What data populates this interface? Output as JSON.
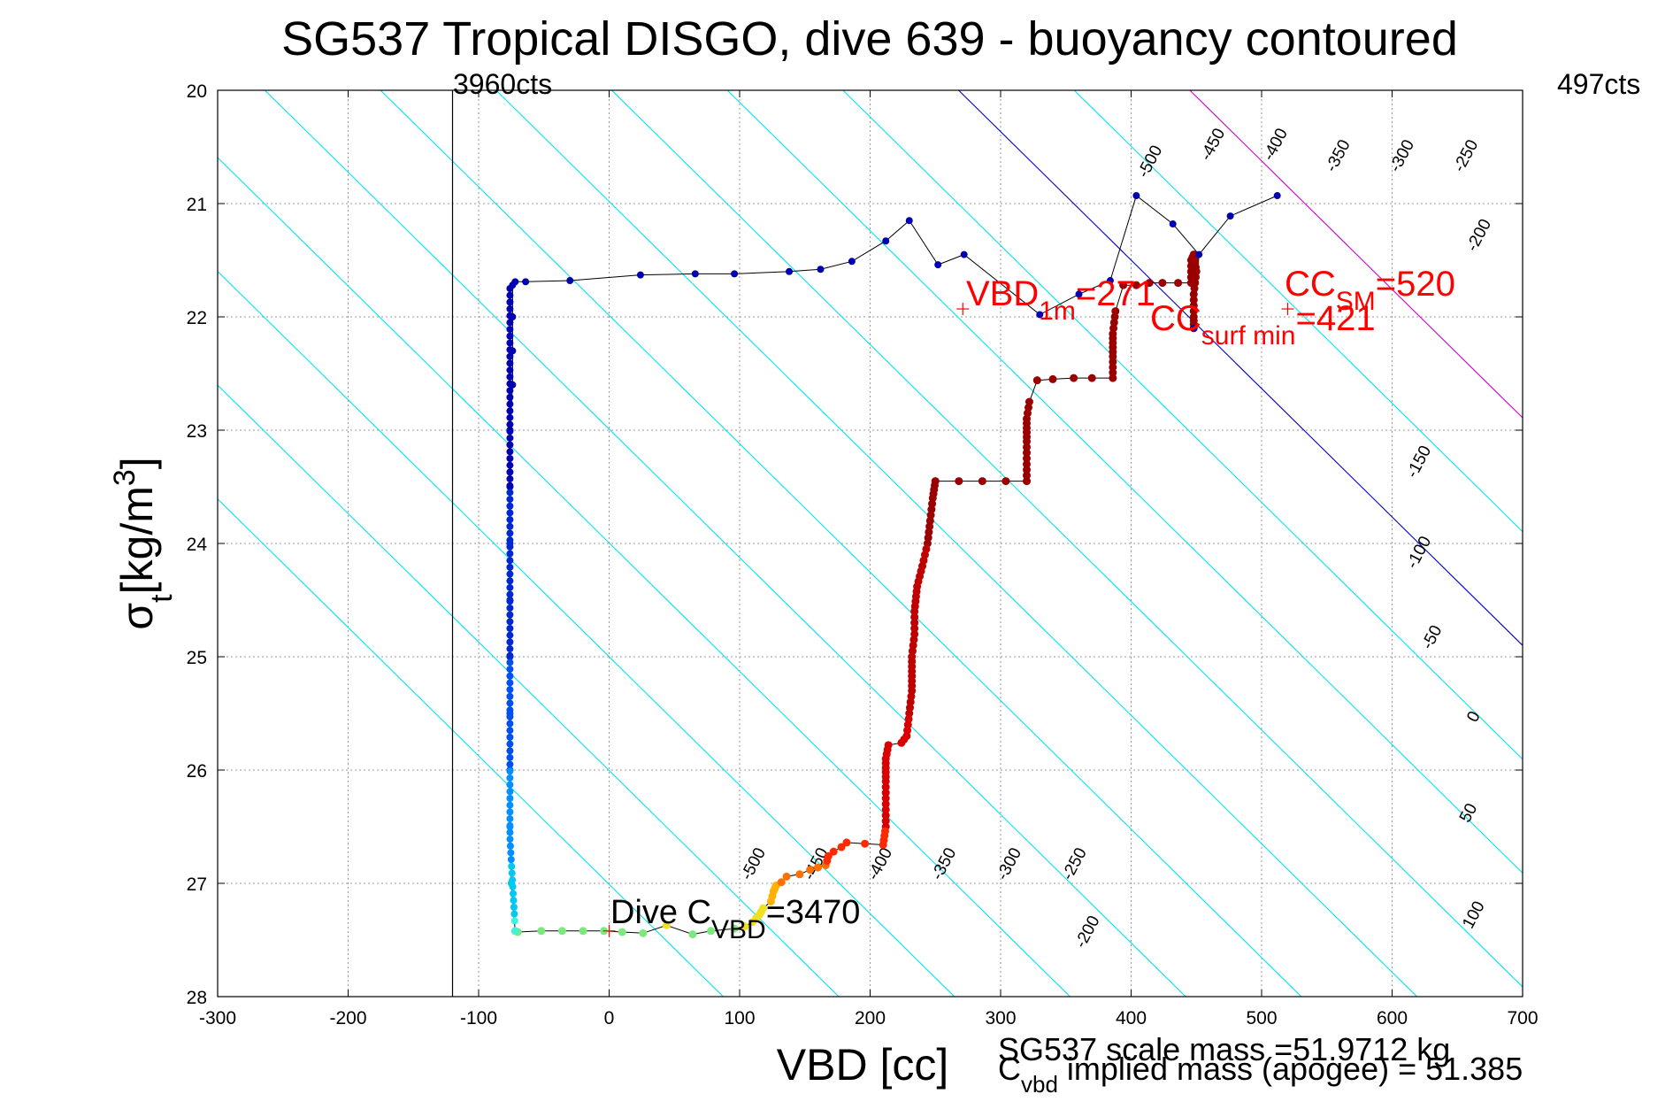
{
  "chart_data": {
    "type": "scatter",
    "title": "SG537 Tropical DISGO, dive 639 - buoyancy contoured",
    "xlabel": "VBD [cc]",
    "ylabel_main": "σ",
    "ylabel_sub": "t",
    "ylabel_unit": "[kg/m",
    "ylabel_sup": "3",
    "ylabel_close": "]",
    "xlim": [
      -300,
      700
    ],
    "ylim": [
      20,
      28
    ],
    "y_reversed": true,
    "grid": true,
    "x_ticks": [
      "-300",
      "-200",
      "-100",
      "0",
      "100",
      "200",
      "300",
      "400",
      "500",
      "600",
      "700"
    ],
    "y_ticks": [
      "20",
      "21",
      "22",
      "23",
      "24",
      "25",
      "26",
      "27",
      "28"
    ],
    "vertical_line": {
      "x": -120,
      "label": "3960cts"
    },
    "right_label": "497cts",
    "contours": [
      {
        "level": -500,
        "color": "#00e5ee",
        "label": "-500"
      },
      {
        "level": -450,
        "color": "#00e5ee",
        "label": "-450"
      },
      {
        "level": -400,
        "color": "#00e5ee",
        "label": "-400"
      },
      {
        "level": -350,
        "color": "#00e5ee",
        "label": "-350"
      },
      {
        "level": -300,
        "color": "#00e5ee",
        "label": "-300"
      },
      {
        "level": -250,
        "color": "#00e5ee",
        "label": "-250"
      },
      {
        "level": -200,
        "color": "#00e5ee",
        "label": "-200"
      },
      {
        "level": -150,
        "color": "#00e5ee",
        "label": "-150"
      },
      {
        "level": -100,
        "color": "#00e5ee",
        "label": "-100"
      },
      {
        "level": -50,
        "color": "#00e5ee",
        "label": "-50"
      },
      {
        "level": 0,
        "color": "#0000cc",
        "label": "0"
      },
      {
        "level": 50,
        "color": "#00e5ee",
        "label": "50"
      },
      {
        "level": 100,
        "color": "#cc00cc",
        "label": "100"
      }
    ],
    "dive_series": {
      "name": "dive",
      "points": [
        [
          -72,
          27.42
        ],
        [
          -70,
          27.43
        ],
        [
          -52,
          27.42
        ],
        [
          -36,
          27.42
        ],
        [
          -20,
          27.42
        ],
        [
          -4,
          27.42
        ],
        [
          10,
          27.43
        ],
        [
          26,
          27.44
        ],
        [
          44,
          27.37
        ],
        [
          64,
          27.45
        ],
        [
          78,
          27.42
        ],
        [
          96,
          27.4
        ],
        [
          104,
          27.38
        ],
        [
          110,
          27.34
        ],
        [
          115,
          27.28
        ],
        [
          118,
          27.22
        ],
        [
          124,
          27.16
        ],
        [
          126,
          27.07
        ],
        [
          128,
          27.02
        ],
        [
          132,
          26.99
        ],
        [
          136,
          26.94
        ],
        [
          146,
          26.92
        ],
        [
          154,
          26.88
        ],
        [
          160,
          26.86
        ],
        [
          166,
          26.84
        ],
        [
          168,
          26.76
        ],
        [
          172,
          26.72
        ],
        [
          178,
          26.68
        ],
        [
          182,
          26.64
        ],
        [
          196,
          26.65
        ],
        [
          210,
          26.66
        ],
        [
          212,
          26.5
        ],
        [
          212,
          26.3
        ],
        [
          212,
          26.1
        ],
        [
          212,
          25.9
        ],
        [
          214,
          25.78
        ],
        [
          224,
          25.76
        ],
        [
          228,
          25.7
        ],
        [
          230,
          25.5
        ],
        [
          232,
          25.3
        ],
        [
          232,
          25.0
        ],
        [
          234,
          24.8
        ],
        [
          234,
          24.6
        ],
        [
          236,
          24.38
        ],
        [
          240,
          24.2
        ],
        [
          244,
          24.0
        ],
        [
          246,
          23.8
        ],
        [
          248,
          23.6
        ],
        [
          250,
          23.45
        ],
        [
          268,
          23.45
        ],
        [
          286,
          23.45
        ],
        [
          304,
          23.45
        ],
        [
          320,
          23.45
        ],
        [
          320,
          23.3
        ],
        [
          320,
          23.1
        ],
        [
          320,
          22.9
        ],
        [
          322,
          22.75
        ],
        [
          328,
          22.56
        ],
        [
          340,
          22.55
        ],
        [
          356,
          22.54
        ],
        [
          370,
          22.54
        ],
        [
          386,
          22.54
        ],
        [
          386,
          22.35
        ],
        [
          386,
          22.15
        ],
        [
          388,
          21.95
        ],
        [
          394,
          21.72
        ],
        [
          404,
          21.72
        ],
        [
          414,
          21.7
        ],
        [
          424,
          21.7
        ],
        [
          436,
          21.7
        ],
        [
          446,
          21.7
        ],
        [
          446,
          21.5
        ],
        [
          448,
          21.45
        ],
        [
          450,
          21.6
        ],
        [
          448,
          21.8
        ],
        [
          448,
          22.0
        ],
        [
          448,
          22.1
        ]
      ],
      "climb_points": [
        [
          448,
          22.1
        ],
        [
          452,
          21.45
        ],
        [
          432,
          21.18
        ],
        [
          404,
          20.93
        ],
        [
          384,
          21.68
        ],
        [
          360,
          21.8
        ],
        [
          330,
          21.98
        ],
        [
          272,
          21.45
        ],
        [
          252,
          21.54
        ],
        [
          230,
          21.15
        ],
        [
          212,
          21.33
        ],
        [
          186,
          21.51
        ],
        [
          162,
          21.58
        ],
        [
          138,
          21.6
        ],
        [
          96,
          21.62
        ],
        [
          66,
          21.62
        ],
        [
          24,
          21.63
        ],
        [
          -30,
          21.68
        ],
        [
          -64,
          21.69
        ],
        [
          -72,
          21.69
        ],
        [
          -74,
          21.72
        ],
        [
          -74,
          22.0
        ],
        [
          -74,
          22.3
        ],
        [
          -74,
          22.6
        ],
        [
          -76,
          23.0
        ],
        [
          -76,
          23.5
        ],
        [
          -76,
          24.0
        ],
        [
          -76,
          24.5
        ],
        [
          -76,
          25.0
        ],
        [
          -76,
          25.5
        ],
        [
          -76,
          26.0
        ],
        [
          -76,
          26.5
        ],
        [
          -75,
          27.0
        ],
        [
          -72,
          27.42
        ]
      ],
      "extra_climb": [
        [
          476,
          21.11
        ],
        [
          512,
          20.93
        ]
      ]
    },
    "annotations": {
      "vbd_1m_main": "VBD",
      "vbd_1m_sub": "1m",
      "vbd_1m_val": "=271",
      "cc_sm_main": "CC",
      "cc_sm_sub": "SM",
      "cc_sm_val": "=520",
      "cc_surf_main": "CC",
      "cc_surf_sub": "surf min",
      "cc_surf_val": "=421",
      "dive_c_main": "Dive C",
      "dive_c_sub": "VBD",
      "dive_c_val": "=3470",
      "scale_mass": "SG537 scale mass =51.9712 kg",
      "implied_main": "C",
      "implied_sub": "vbd",
      "implied_rest": " implied mass (apogee) = 51.385"
    },
    "marker_points": {
      "vbd_1m": [
        271,
        21.93
      ],
      "cc_sm": [
        520,
        21.93
      ],
      "dive_c": [
        0,
        27.42
      ]
    }
  }
}
